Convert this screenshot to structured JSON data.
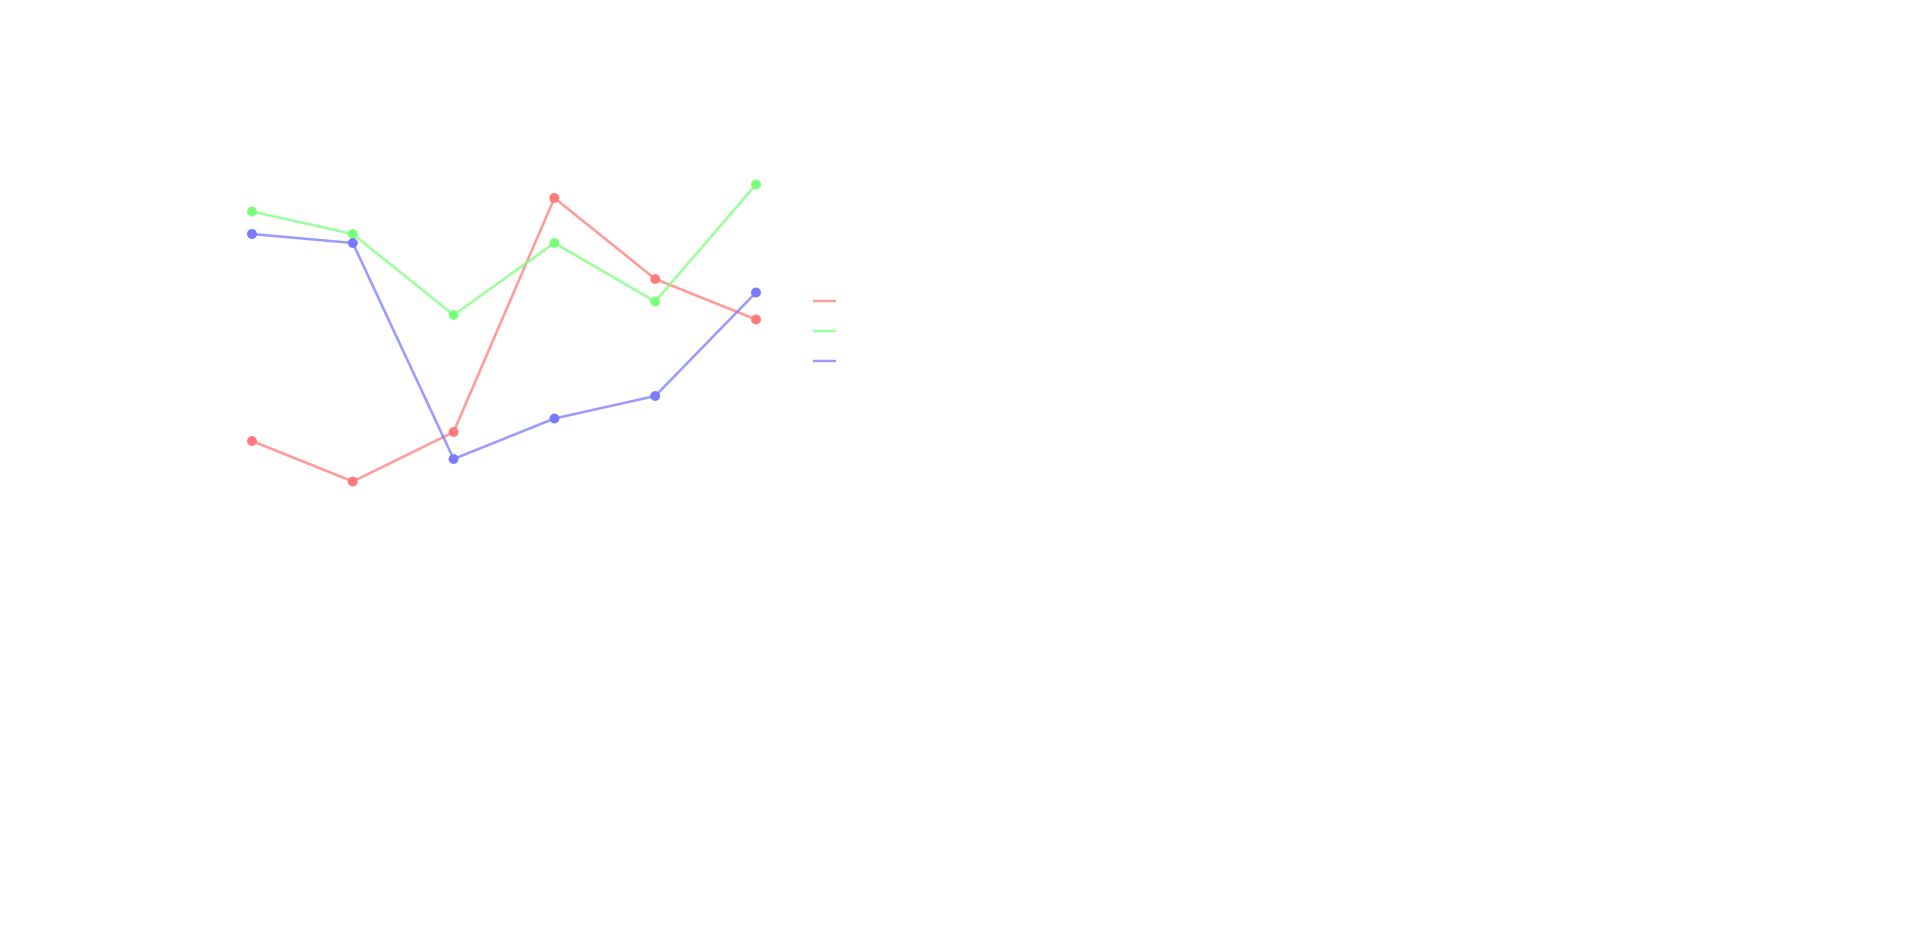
{
  "chart_data": {
    "type": "line",
    "title": "",
    "xlabel": "",
    "ylabel": "",
    "x": [
      0,
      1,
      2,
      3,
      4,
      5
    ],
    "ylim": [
      0,
      100
    ],
    "grid": false,
    "legend_position": "right",
    "series": [
      {
        "color": "#ff7a7a",
        "values": [
          42,
          33,
          44,
          96,
          78,
          69
        ]
      },
      {
        "color": "#7aff7a",
        "values": [
          93,
          88,
          70,
          86,
          73,
          99
        ]
      },
      {
        "color": "#7a7aff",
        "values": [
          88,
          86,
          38,
          47,
          52,
          75
        ]
      }
    ]
  }
}
